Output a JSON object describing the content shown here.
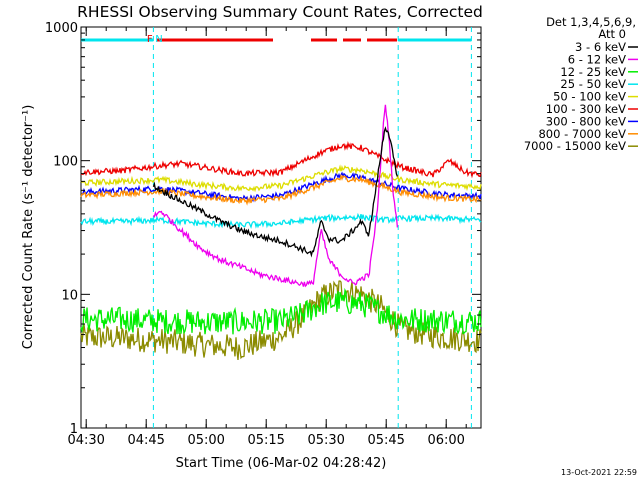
{
  "colors": {
    "background": "#ffffff",
    "axis": "#000000",
    "attenuator_bar": "#00e5ee",
    "flare_flag": "#ee0000"
  },
  "chart_data": {
    "type": "line",
    "title": "RHESSI Observing Summary Count Rates, Corrected",
    "xlabel": "Start Time (06-Mar-02 04:28:42)",
    "ylabel": "Corrected Count Rate (s⁻¹ detector⁻¹)",
    "yscale": "log",
    "ylim": [
      1,
      1000
    ],
    "xlim_minutes": [
      0,
      100
    ],
    "x_ticks": [
      {
        "label": "04:30",
        "minute": 1.3
      },
      {
        "label": "04:45",
        "minute": 16.3
      },
      {
        "label": "05:00",
        "minute": 31.3
      },
      {
        "label": "05:15",
        "minute": 46.3
      },
      {
        "label": "05:30",
        "minute": 61.3
      },
      {
        "label": "05:45",
        "minute": 76.3
      },
      {
        "label": "06:00",
        "minute": 91.3
      }
    ],
    "y_ticks": [
      {
        "label": "1",
        "value": 1
      },
      {
        "label": "10",
        "value": 10
      },
      {
        "label": "100",
        "value": 100
      },
      {
        "label": "1000",
        "value": 1000
      }
    ],
    "legend_header": [
      "Det 1,3,4,5,6,9,",
      "Att 0"
    ],
    "night_boundaries_minutes": [
      18.1,
      79.3,
      97.6
    ],
    "attenuator_segments": [
      {
        "start": 0,
        "end": 18.1,
        "value": 800
      },
      {
        "start": 79.3,
        "end": 97.6,
        "value": 800
      }
    ],
    "flag_labels": [
      {
        "text": "F",
        "minute": 17.2,
        "color": "#ee0000"
      },
      {
        "text": "N",
        "minute": 19.5,
        "color": "#00e5ee"
      }
    ],
    "flare_flag_segments": [
      {
        "start": 19,
        "end": 48
      },
      {
        "start": 57.5,
        "end": 64
      },
      {
        "start": 65.5,
        "end": 70
      },
      {
        "start": 71.5,
        "end": 79
      }
    ],
    "series": [
      {
        "name": "3 - 6 keV",
        "color": "#000000",
        "start": 18.1,
        "x": [
          18.1,
          20,
          25,
          30,
          35,
          40,
          45,
          50,
          55,
          58,
          60,
          62,
          65,
          68,
          70,
          72,
          74,
          76,
          77,
          78,
          79.2
        ],
        "y": [
          65,
          60,
          50,
          42,
          35,
          30,
          27,
          25,
          22,
          20,
          35,
          26,
          25,
          30,
          35,
          28,
          70,
          180,
          160,
          110,
          70
        ]
      },
      {
        "name": "6 - 12 keV",
        "color": "#ee00ee",
        "start": 18.1,
        "x": [
          18.1,
          20,
          25,
          30,
          35,
          40,
          45,
          50,
          55,
          58,
          60,
          62,
          65,
          68,
          70,
          72,
          74,
          76,
          77,
          78,
          79.2
        ],
        "y": [
          38,
          42,
          30,
          22,
          18,
          16,
          14,
          13,
          12,
          12,
          30,
          18,
          14,
          12,
          13,
          14,
          40,
          270,
          150,
          60,
          30
        ]
      },
      {
        "name": "12 - 25 keV",
        "color": "#00ee00",
        "x": [
          0,
          10,
          20,
          30,
          40,
          50,
          55,
          60,
          65,
          70,
          75,
          80,
          90,
          100
        ],
        "y": [
          6.5,
          6.5,
          6.3,
          6.2,
          6.2,
          6.3,
          7,
          8.5,
          8.8,
          8.5,
          7.5,
          6.5,
          6.4,
          6.3
        ]
      },
      {
        "name": "25 - 50 keV",
        "color": "#00e5ee",
        "x": [
          0,
          10,
          20,
          30,
          40,
          50,
          60,
          70,
          76,
          80,
          90,
          100
        ],
        "y": [
          35,
          35,
          36,
          34,
          33,
          34,
          37,
          38,
          36,
          37,
          37,
          36
        ]
      },
      {
        "name": "50 - 100 keV",
        "color": "#dddd00",
        "x": [
          0,
          10,
          20,
          30,
          40,
          50,
          60,
          65,
          70,
          75,
          80,
          90,
          100
        ],
        "y": [
          68,
          70,
          72,
          66,
          62,
          65,
          80,
          87,
          85,
          78,
          72,
          66,
          64
        ]
      },
      {
        "name": "100 - 300 keV",
        "color": "#ee0000",
        "x": [
          0,
          10,
          20,
          25,
          30,
          40,
          50,
          60,
          65,
          70,
          75,
          80,
          88,
          92,
          96,
          100
        ],
        "y": [
          82,
          84,
          92,
          95,
          90,
          80,
          82,
          115,
          130,
          125,
          105,
          90,
          78,
          100,
          82,
          78
        ]
      },
      {
        "name": "300 - 800 keV",
        "color": "#0000ff",
        "x": [
          0,
          10,
          20,
          30,
          40,
          50,
          60,
          65,
          70,
          75,
          80,
          90,
          100
        ],
        "y": [
          58,
          60,
          62,
          57,
          52,
          55,
          70,
          78,
          75,
          68,
          62,
          56,
          54
        ]
      },
      {
        "name": "800 - 7000 keV",
        "color": "#ff8c00",
        "x": [
          0,
          10,
          20,
          30,
          40,
          50,
          60,
          65,
          70,
          75,
          80,
          90,
          100
        ],
        "y": [
          55,
          57,
          59,
          54,
          50,
          52,
          66,
          74,
          72,
          65,
          58,
          53,
          51
        ]
      },
      {
        "name": "7000 - 15000 keV",
        "color": "#8b8b00",
        "x": [
          0,
          10,
          20,
          30,
          40,
          50,
          55,
          60,
          65,
          70,
          75,
          80,
          90,
          100
        ],
        "y": [
          4.8,
          4.7,
          4.5,
          4.2,
          4.0,
          4.8,
          6.5,
          9.5,
          11,
          10,
          8,
          5.5,
          4.8,
          4.5
        ]
      }
    ],
    "footer_date": "13-Oct-2021 22:59"
  }
}
